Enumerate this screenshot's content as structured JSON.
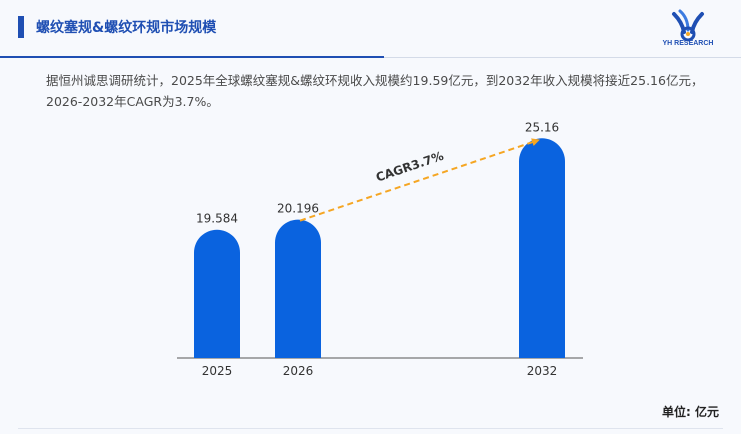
{
  "header": {
    "title": "螺纹塞规&螺纹环规市场规模",
    "logo_icon": "yh-research-logo-icon",
    "logo_text": "YH RESEARCH"
  },
  "description": "据恒州诚思调研统计，2025年全球螺纹塞规&螺纹环规收入规模约19.59亿元，到2032年收入规模将接近25.16亿元，2026-2032年CAGR为3.7%。",
  "unit_label": "单位: 亿元",
  "colors": {
    "accent": "#1f4fb3",
    "bar": "#0a63df",
    "arrow": "#f5a623"
  },
  "chart_data": {
    "type": "bar",
    "categories": [
      "2025",
      "2026",
      "2032"
    ],
    "values": [
      19.584,
      20.196,
      25.16
    ],
    "value_labels": [
      "19.584",
      "20.196",
      "25.16"
    ],
    "annotation": {
      "text": "CAGR3.7%",
      "from": "2026",
      "to": "2032"
    },
    "title": "",
    "xlabel": "",
    "ylabel": "",
    "grid": false,
    "legend": "none"
  }
}
